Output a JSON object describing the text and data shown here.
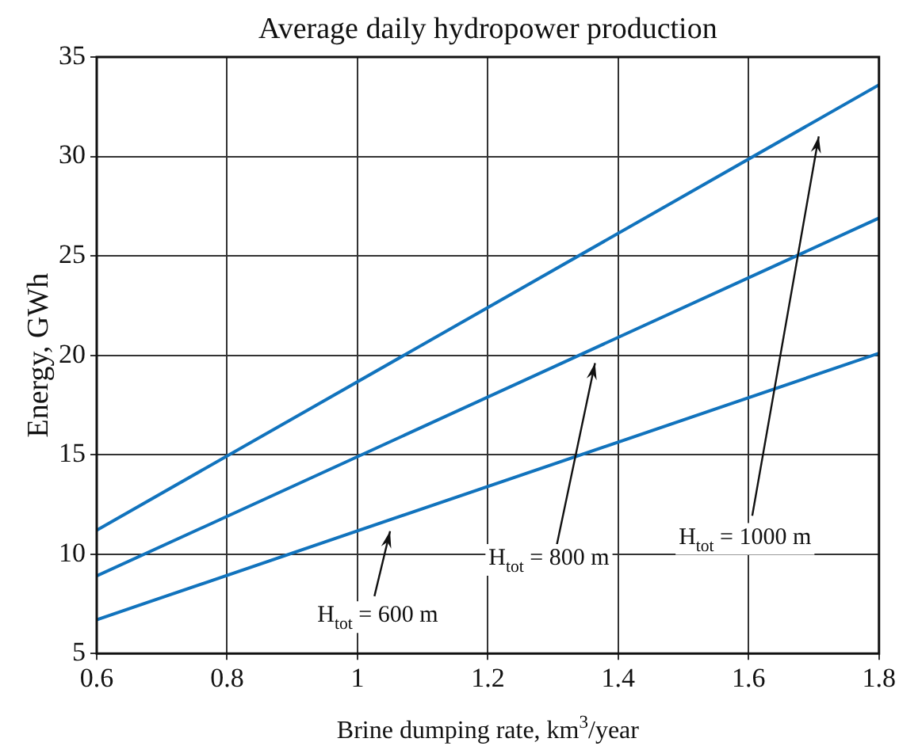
{
  "chart_data": {
    "type": "line",
    "title": "Average daily hydropower production",
    "xlabel": "Brine dumping rate, km$^{3}$/year",
    "ylabel": "Energy, GWh",
    "x": [
      0.6,
      1.8
    ],
    "series": [
      {
        "color": "#1173bd",
        "values": [
          6.7,
          20.1
        ]
      },
      {
        "color": "#1173bd",
        "values": [
          8.9,
          26.9
        ]
      },
      {
        "color": "#1173bd",
        "values": [
          11.2,
          33.6
        ]
      }
    ],
    "xlim": [
      0.6,
      1.8
    ],
    "xticks": [
      0.6,
      0.8,
      1,
      1.2,
      1.4,
      1.6,
      1.8
    ],
    "ylim": [
      5,
      35
    ],
    "yticks": [
      5,
      10,
      15,
      20,
      25,
      30,
      35
    ],
    "grid": true,
    "legend": false,
    "marker": "none",
    "line_style": "solid",
    "annotations": [
      "H$_{tot}$ = 600 m",
      "H$_{tot}$ = 800 m",
      "H$_{tot}$ = 1000 m"
    ]
  }
}
